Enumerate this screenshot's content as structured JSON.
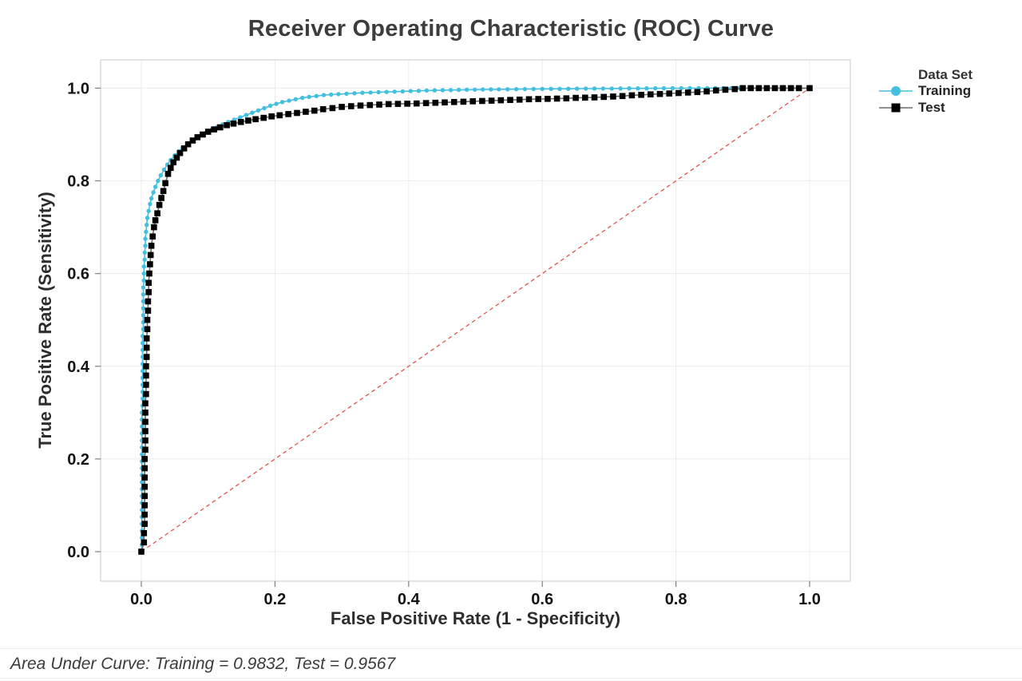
{
  "title": "Receiver Operating Characteristic (ROC) Curve",
  "footer": "Area Under Curve: Training = 0.9832, Test = 0.9567",
  "legend": {
    "title": "Data Set",
    "entries": [
      {
        "label": "Training",
        "marker": "circle",
        "marker_color": "#43bfdf",
        "line_color": "#43bfdf"
      },
      {
        "label": "Test",
        "marker": "square",
        "marker_color": "#000000",
        "line_color": "#6b6b6b"
      }
    ]
  },
  "colors": {
    "grid": "#ececec",
    "plot_border": "#c9c9c9",
    "tick": "#7f7f7f",
    "tick_label": "#141414",
    "diagonal": "#e2544c",
    "background": "#ffffff"
  },
  "chart_data": {
    "type": "line",
    "title": "Receiver Operating Characteristic (ROC) Curve",
    "xlabel": "False Positive Rate (1 - Specificity)",
    "ylabel": "True Positive Rate (Sensitivity)",
    "xlim": [
      -0.061,
      1.061
    ],
    "ylim": [
      -0.064,
      1.061
    ],
    "grid": true,
    "legend_position": "right",
    "x_ticks": {
      "values": [
        0,
        0.2,
        0.4,
        0.6,
        0.8,
        1.0
      ],
      "labels": [
        "0.0",
        "0.2",
        "0.4",
        "0.6",
        "0.8",
        "1.0"
      ]
    },
    "y_ticks": {
      "values": [
        0,
        0.2,
        0.4,
        0.6,
        0.8,
        1.0
      ],
      "labels": [
        "0.0",
        "0.2",
        "0.4",
        "0.6",
        "0.8",
        "1.0"
      ]
    },
    "reference_line": {
      "name": "chance-diagonal",
      "from": [
        0,
        0
      ],
      "to": [
        1,
        1
      ],
      "color": "#e2544c",
      "dash": [
        5,
        4
      ],
      "width": 1.3
    },
    "series": [
      {
        "name": "Training",
        "auc": 0.9832,
        "color": "#43bfdf",
        "marker": "circle",
        "marker_size": 5.4,
        "line_color": "#43bfdf",
        "line_width": 1.6,
        "points": [
          [
            0,
            0
          ],
          [
            0.001,
            0.015
          ],
          [
            0.001,
            0.03
          ],
          [
            0.001,
            0.045
          ],
          [
            0.001,
            0.06
          ],
          [
            0.001,
            0.075
          ],
          [
            0.001,
            0.09
          ],
          [
            0.001,
            0.105
          ],
          [
            0.001,
            0.12
          ],
          [
            0.001,
            0.135
          ],
          [
            0.001,
            0.15
          ],
          [
            0.001,
            0.165
          ],
          [
            0.001,
            0.18
          ],
          [
            0.001,
            0.195
          ],
          [
            0.001,
            0.21
          ],
          [
            0.001,
            0.225
          ],
          [
            0.001,
            0.24
          ],
          [
            0.001,
            0.255
          ],
          [
            0.001,
            0.27
          ],
          [
            0.001,
            0.285
          ],
          [
            0.001,
            0.3
          ],
          [
            0.002,
            0.315
          ],
          [
            0.002,
            0.33
          ],
          [
            0.002,
            0.345
          ],
          [
            0.002,
            0.36
          ],
          [
            0.002,
            0.375
          ],
          [
            0.002,
            0.39
          ],
          [
            0.002,
            0.405
          ],
          [
            0.002,
            0.42
          ],
          [
            0.002,
            0.435
          ],
          [
            0.002,
            0.45
          ],
          [
            0.002,
            0.465
          ],
          [
            0.003,
            0.48
          ],
          [
            0.003,
            0.495
          ],
          [
            0.003,
            0.51
          ],
          [
            0.003,
            0.525
          ],
          [
            0.003,
            0.54
          ],
          [
            0.003,
            0.555
          ],
          [
            0.003,
            0.57
          ],
          [
            0.004,
            0.585
          ],
          [
            0.004,
            0.6
          ],
          [
            0.004,
            0.615
          ],
          [
            0.005,
            0.63
          ],
          [
            0.005,
            0.645
          ],
          [
            0.006,
            0.66
          ],
          [
            0.006,
            0.675
          ],
          [
            0.007,
            0.69
          ],
          [
            0.008,
            0.705
          ],
          [
            0.009,
            0.72
          ],
          [
            0.011,
            0.735
          ],
          [
            0.013,
            0.75
          ],
          [
            0.015,
            0.762
          ],
          [
            0.018,
            0.775
          ],
          [
            0.021,
            0.787
          ],
          [
            0.025,
            0.8
          ],
          [
            0.029,
            0.812
          ],
          [
            0.034,
            0.824
          ],
          [
            0.039,
            0.835
          ],
          [
            0.044,
            0.845
          ],
          [
            0.05,
            0.855
          ],
          [
            0.056,
            0.864
          ],
          [
            0.062,
            0.872
          ],
          [
            0.069,
            0.88
          ],
          [
            0.076,
            0.887
          ],
          [
            0.083,
            0.894
          ],
          [
            0.09,
            0.9
          ],
          [
            0.098,
            0.906
          ],
          [
            0.106,
            0.912
          ],
          [
            0.114,
            0.917
          ],
          [
            0.122,
            0.922
          ],
          [
            0.13,
            0.927
          ],
          [
            0.139,
            0.932
          ],
          [
            0.148,
            0.937
          ],
          [
            0.157,
            0.942
          ],
          [
            0.166,
            0.947
          ],
          [
            0.175,
            0.952
          ],
          [
            0.184,
            0.957
          ],
          [
            0.193,
            0.962
          ],
          [
            0.202,
            0.966
          ],
          [
            0.211,
            0.97
          ],
          [
            0.221,
            0.973
          ],
          [
            0.231,
            0.976
          ],
          [
            0.241,
            0.979
          ],
          [
            0.251,
            0.981
          ],
          [
            0.262,
            0.983
          ],
          [
            0.273,
            0.985
          ],
          [
            0.284,
            0.986
          ],
          [
            0.295,
            0.987
          ],
          [
            0.307,
            0.988
          ],
          [
            0.319,
            0.989
          ],
          [
            0.331,
            0.99
          ],
          [
            0.343,
            0.9906
          ],
          [
            0.355,
            0.9912
          ],
          [
            0.367,
            0.9918
          ],
          [
            0.379,
            0.9924
          ],
          [
            0.391,
            0.993
          ],
          [
            0.403,
            0.9936
          ],
          [
            0.415,
            0.9942
          ],
          [
            0.427,
            0.9948
          ],
          [
            0.439,
            0.9952
          ],
          [
            0.451,
            0.9956
          ],
          [
            0.463,
            0.9959
          ],
          [
            0.475,
            0.9962
          ],
          [
            0.487,
            0.9965
          ],
          [
            0.499,
            0.9968
          ],
          [
            0.511,
            0.997
          ],
          [
            0.523,
            0.9972
          ],
          [
            0.535,
            0.9974
          ],
          [
            0.548,
            0.9976
          ],
          [
            0.561,
            0.9978
          ],
          [
            0.574,
            0.998
          ],
          [
            0.587,
            0.9981
          ],
          [
            0.6,
            0.9982
          ],
          [
            0.613,
            0.9984
          ],
          [
            0.626,
            0.9985
          ],
          [
            0.639,
            0.9986
          ],
          [
            0.652,
            0.9988
          ],
          [
            0.665,
            0.9989
          ],
          [
            0.678,
            0.999
          ],
          [
            0.691,
            0.9991
          ],
          [
            0.704,
            0.9992
          ],
          [
            0.717,
            0.9993
          ],
          [
            0.73,
            0.9994
          ],
          [
            0.743,
            0.9995
          ],
          [
            0.756,
            0.9995
          ],
          [
            0.769,
            0.9996
          ],
          [
            0.782,
            0.9997
          ],
          [
            0.795,
            0.9998
          ],
          [
            0.808,
            0.9998
          ],
          [
            0.821,
            0.9999
          ],
          [
            0.834,
            0.9999
          ],
          [
            0.847,
            1
          ],
          [
            0.859,
            1
          ],
          [
            0.871,
            1
          ],
          [
            0.883,
            1
          ],
          [
            0.895,
            1
          ],
          [
            1,
            1
          ]
        ]
      },
      {
        "name": "Test",
        "auc": 0.9567,
        "color": "#000000",
        "marker": "square",
        "marker_size": 7.6,
        "line_color": "#6b6b6b",
        "line_width": 1.6,
        "points": [
          [
            0,
            0
          ],
          [
            0.004,
            0.02
          ],
          [
            0.004,
            0.04
          ],
          [
            0.005,
            0.06
          ],
          [
            0.005,
            0.08
          ],
          [
            0.005,
            0.1
          ],
          [
            0.005,
            0.12
          ],
          [
            0.005,
            0.14
          ],
          [
            0.005,
            0.16
          ],
          [
            0.005,
            0.18
          ],
          [
            0.005,
            0.2
          ],
          [
            0.006,
            0.22
          ],
          [
            0.006,
            0.24
          ],
          [
            0.006,
            0.26
          ],
          [
            0.006,
            0.28
          ],
          [
            0.006,
            0.3
          ],
          [
            0.006,
            0.32
          ],
          [
            0.007,
            0.34
          ],
          [
            0.007,
            0.36
          ],
          [
            0.007,
            0.38
          ],
          [
            0.007,
            0.4
          ],
          [
            0.008,
            0.42
          ],
          [
            0.008,
            0.44
          ],
          [
            0.008,
            0.46
          ],
          [
            0.009,
            0.48
          ],
          [
            0.009,
            0.5
          ],
          [
            0.01,
            0.52
          ],
          [
            0.01,
            0.54
          ],
          [
            0.011,
            0.56
          ],
          [
            0.011,
            0.58
          ],
          [
            0.012,
            0.6
          ],
          [
            0.013,
            0.62
          ],
          [
            0.014,
            0.64
          ],
          [
            0.015,
            0.66
          ],
          [
            0.017,
            0.68
          ],
          [
            0.019,
            0.7
          ],
          [
            0.021,
            0.715
          ],
          [
            0.024,
            0.73
          ],
          [
            0.027,
            0.748
          ],
          [
            0.03,
            0.763
          ],
          [
            0.033,
            0.778
          ],
          [
            0.036,
            0.795
          ],
          [
            0.04,
            0.815
          ],
          [
            0.044,
            0.828
          ],
          [
            0.048,
            0.84
          ],
          [
            0.053,
            0.85
          ],
          [
            0.058,
            0.86
          ],
          [
            0.064,
            0.87
          ],
          [
            0.07,
            0.879
          ],
          [
            0.077,
            0.887
          ],
          [
            0.084,
            0.894
          ],
          [
            0.092,
            0.9
          ],
          [
            0.1,
            0.906
          ],
          [
            0.109,
            0.911
          ],
          [
            0.118,
            0.9155
          ],
          [
            0.128,
            0.92
          ],
          [
            0.138,
            0.9235
          ],
          [
            0.149,
            0.927
          ],
          [
            0.16,
            0.93
          ],
          [
            0.171,
            0.933
          ],
          [
            0.183,
            0.936
          ],
          [
            0.195,
            0.939
          ],
          [
            0.207,
            0.9415
          ],
          [
            0.22,
            0.944
          ],
          [
            0.233,
            0.9465
          ],
          [
            0.246,
            0.949
          ],
          [
            0.259,
            0.9515
          ],
          [
            0.272,
            0.9545
          ],
          [
            0.286,
            0.957
          ],
          [
            0.3,
            0.9595
          ],
          [
            0.314,
            0.961
          ],
          [
            0.328,
            0.9625
          ],
          [
            0.342,
            0.9635
          ],
          [
            0.356,
            0.9645
          ],
          [
            0.37,
            0.9655
          ],
          [
            0.384,
            0.966
          ],
          [
            0.398,
            0.9665
          ],
          [
            0.412,
            0.967
          ],
          [
            0.426,
            0.9678
          ],
          [
            0.44,
            0.9685
          ],
          [
            0.454,
            0.9692
          ],
          [
            0.468,
            0.97
          ],
          [
            0.482,
            0.9708
          ],
          [
            0.496,
            0.9715
          ],
          [
            0.51,
            0.9722
          ],
          [
            0.524,
            0.973
          ],
          [
            0.538,
            0.9738
          ],
          [
            0.552,
            0.9745
          ],
          [
            0.566,
            0.9752
          ],
          [
            0.58,
            0.976
          ],
          [
            0.594,
            0.9765
          ],
          [
            0.608,
            0.977
          ],
          [
            0.622,
            0.9775
          ],
          [
            0.636,
            0.978
          ],
          [
            0.65,
            0.979
          ],
          [
            0.664,
            0.9795
          ],
          [
            0.678,
            0.98
          ],
          [
            0.692,
            0.981
          ],
          [
            0.706,
            0.982
          ],
          [
            0.72,
            0.983
          ],
          [
            0.734,
            0.9845
          ],
          [
            0.748,
            0.9855
          ],
          [
            0.762,
            0.9865
          ],
          [
            0.776,
            0.9875
          ],
          [
            0.79,
            0.9885
          ],
          [
            0.804,
            0.9895
          ],
          [
            0.818,
            0.9905
          ],
          [
            0.832,
            0.9915
          ],
          [
            0.846,
            0.993
          ],
          [
            0.86,
            0.995
          ],
          [
            0.874,
            0.9965
          ],
          [
            0.888,
            0.998
          ],
          [
            0.9,
            1
          ],
          [
            0.912,
            1
          ],
          [
            0.924,
            1
          ],
          [
            0.936,
            1
          ],
          [
            0.948,
            1
          ],
          [
            0.96,
            1
          ],
          [
            0.972,
            1
          ],
          [
            0.984,
            1
          ],
          [
            1,
            1
          ]
        ]
      }
    ]
  }
}
